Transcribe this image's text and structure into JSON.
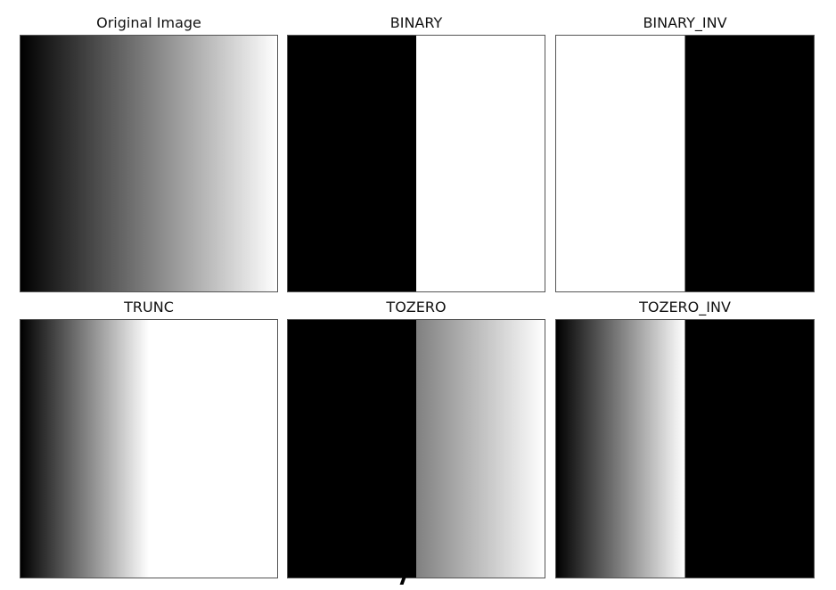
{
  "figure": {
    "panels": [
      {
        "title": "Original Image",
        "ramp": "gradient"
      },
      {
        "title": "BINARY",
        "ramp": "binary"
      },
      {
        "title": "BINARY_INV",
        "ramp": "binary_inv"
      },
      {
        "title": "TRUNC",
        "ramp": "trunc"
      },
      {
        "title": "TOZERO",
        "ramp": "tozero"
      },
      {
        "title": "TOZERO_INV",
        "ramp": "tozero_inv"
      }
    ],
    "threshold_fraction": 0.5,
    "trunc_fraction": 0.5,
    "colors": {
      "black": "#000000",
      "white": "#ffffff",
      "frame": "#555555",
      "title_text": "#111111"
    }
  }
}
